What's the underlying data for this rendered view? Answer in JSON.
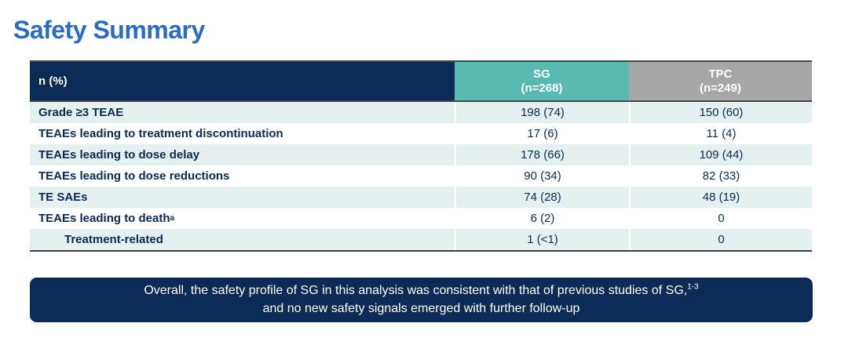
{
  "title": "Safety Summary",
  "colors": {
    "title_blue": "#2b6cbf",
    "navy": "#0b2a55",
    "teal_header": "#58b8b2",
    "gray_header": "#a6a6a6",
    "row_alt": "#e4f1f0",
    "border_dark": "#454545",
    "text_navy": "#0b2a55",
    "white": "#ffffff"
  },
  "table": {
    "header": {
      "col_label": "n (%)",
      "col_sg_line1": "SG",
      "col_sg_line2": "(n=268)",
      "col_tpc_line1": "TPC",
      "col_tpc_line2": "(n=249)"
    },
    "rows": [
      {
        "label": "Grade ≥3 TEAE",
        "label_sup": "",
        "indent": false,
        "sg": "198 (74)",
        "tpc": "150 (60)"
      },
      {
        "label": "TEAEs leading to treatment discontinuation",
        "label_sup": "",
        "indent": false,
        "sg": "17 (6)",
        "tpc": "11 (4)"
      },
      {
        "label": "TEAEs leading to dose delay",
        "label_sup": "",
        "indent": false,
        "sg": "178 (66)",
        "tpc": "109 (44)"
      },
      {
        "label": "TEAEs leading to dose reductions",
        "label_sup": "",
        "indent": false,
        "sg": "90 (34)",
        "tpc": "82 (33)"
      },
      {
        "label": "TE SAEs",
        "label_sup": "",
        "indent": false,
        "sg": "74 (28)",
        "tpc": "48 (19)"
      },
      {
        "label": "TEAEs leading to death",
        "label_sup": "a",
        "indent": false,
        "sg": "6 (2)",
        "tpc": "0"
      },
      {
        "label": "Treatment-related",
        "label_sup": "",
        "indent": true,
        "sg": "1 (<1)",
        "tpc": "0"
      }
    ]
  },
  "footer": {
    "line1": "Overall, the safety profile of SG in this analysis was consistent with that of previous studies of SG,",
    "line1_sup": "1-3",
    "line2": "and no new safety signals emerged with further follow-up"
  }
}
